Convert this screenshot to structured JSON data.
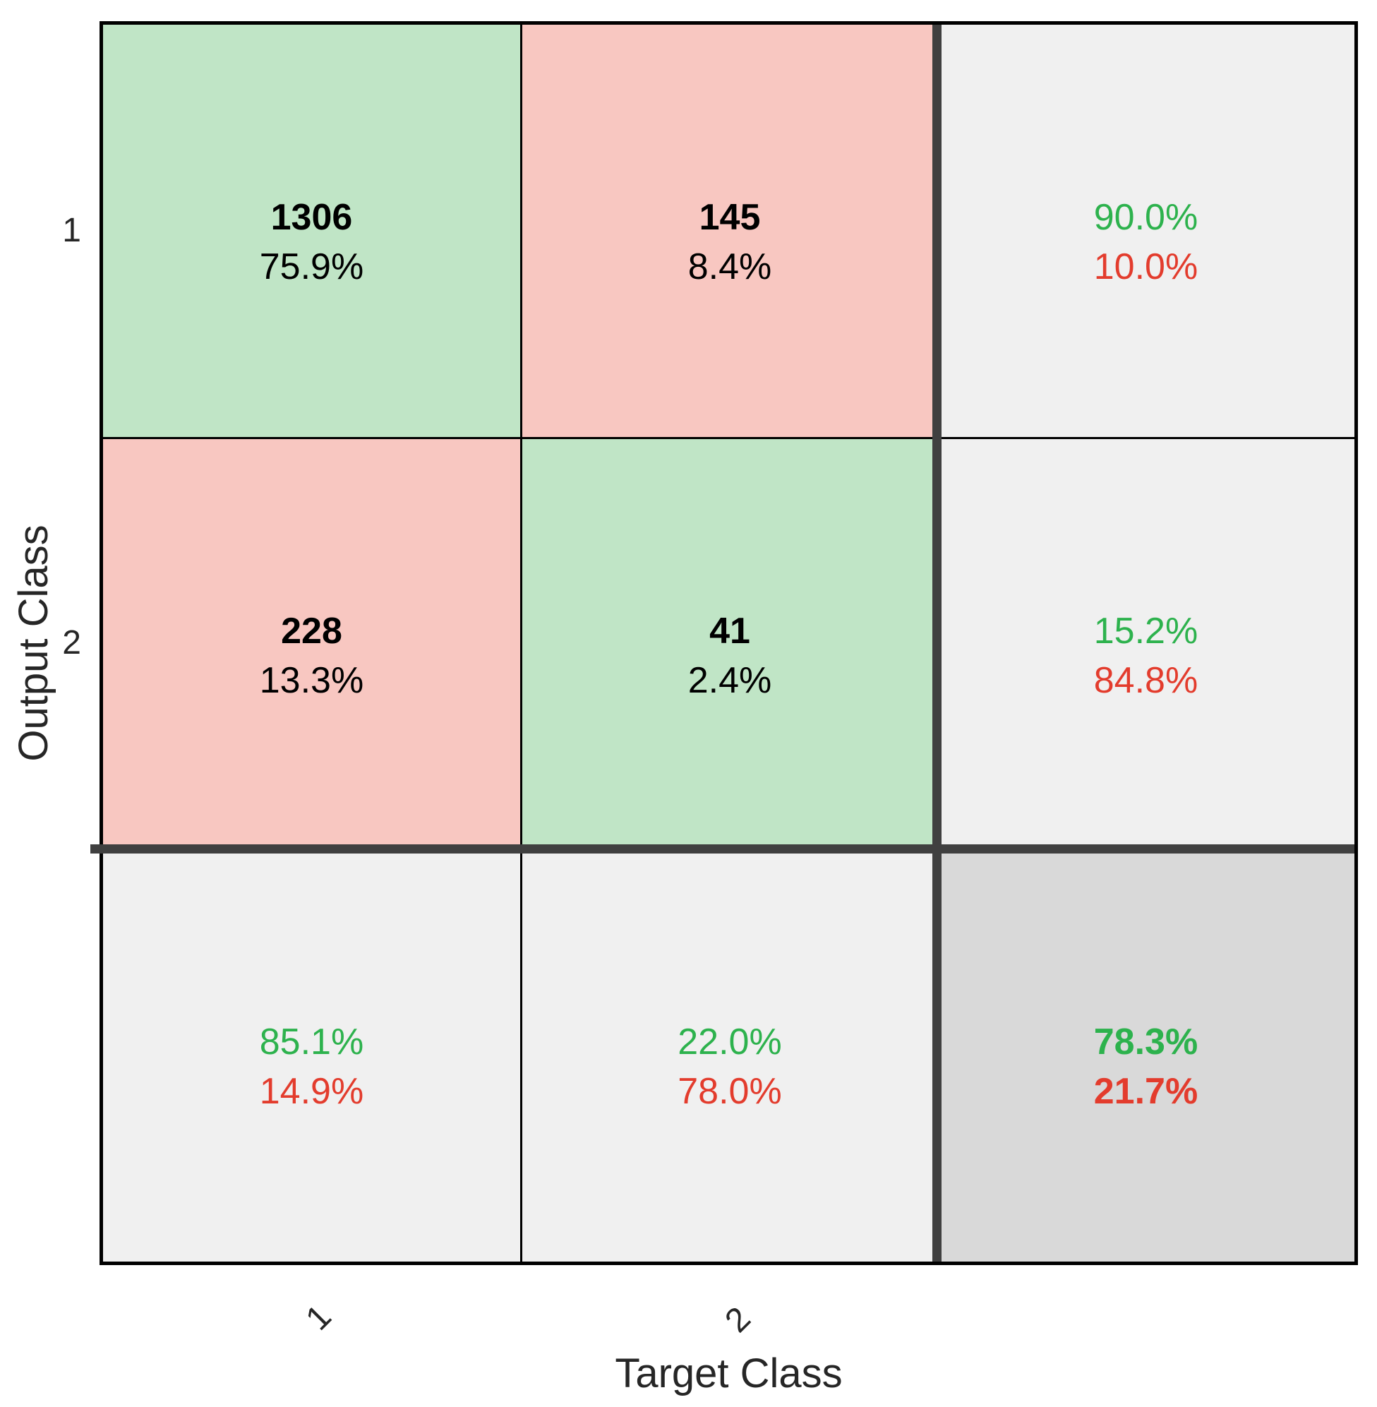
{
  "chart_data": {
    "type": "heatmap",
    "subtype": "confusion_matrix",
    "title": "",
    "xlabel": "Target Class",
    "ylabel": "Output Class",
    "x_tick_labels": [
      "1",
      "2"
    ],
    "y_tick_labels": [
      "1",
      "2"
    ],
    "grid": "3x3 (2 classes + summary row/column)",
    "legend": "none",
    "matrix": {
      "counts": [
        [
          1306,
          145
        ],
        [
          228,
          41
        ]
      ],
      "percent_of_total": [
        [
          "75.9%",
          "8.4%"
        ],
        [
          "13.3%",
          "2.4%"
        ]
      ],
      "row_summary": [
        {
          "positive": "90.0%",
          "negative": "10.0%"
        },
        {
          "positive": "15.2%",
          "negative": "84.8%"
        }
      ],
      "col_summary": [
        {
          "positive": "85.1%",
          "negative": "14.9%"
        },
        {
          "positive": "22.0%",
          "negative": "78.0%"
        }
      ],
      "overall": {
        "positive": "78.3%",
        "negative": "21.7%"
      }
    },
    "colors": {
      "correct_cell": "#C0E5C6",
      "incorrect_cell": "#F8C7C1",
      "summary_cell": "#F0F0F0",
      "overall_cell": "#D9D9D9",
      "positive_text": "#2DB24D",
      "negative_text": "#E33C2D",
      "separator": "#404040",
      "grid_line": "#000000"
    }
  }
}
